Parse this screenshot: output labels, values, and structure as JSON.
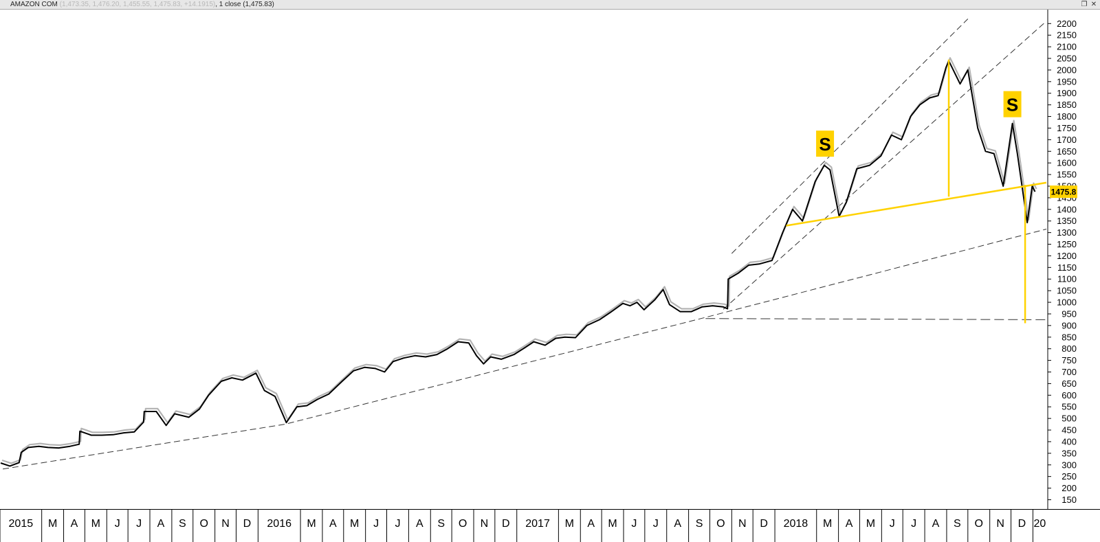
{
  "header": {
    "symbol": "AMAZON COM",
    "ohlc": "(1,473.35, 1,476.20, 1,455.55, 1,475.83, +14.1915)",
    "close_text": ", 1 close",
    "close_value": "(1,475.83)",
    "restore_icon": "window-restore-icon",
    "close_icon": "close-icon"
  },
  "chart_data": {
    "type": "line",
    "series": [
      {
        "name": "",
        "color": "#000000",
        "points": [
          [
            "2015-01-02",
            308
          ],
          [
            "2015-01-15",
            295
          ],
          [
            "2015-01-28",
            310
          ],
          [
            "2015-01-31",
            354
          ],
          [
            "2015-02-10",
            375
          ],
          [
            "2015-02-25",
            380
          ],
          [
            "2015-03-10",
            375
          ],
          [
            "2015-03-25",
            373
          ],
          [
            "2015-04-10",
            380
          ],
          [
            "2015-04-23",
            389
          ],
          [
            "2015-04-24",
            445
          ],
          [
            "2015-05-10",
            428
          ],
          [
            "2015-05-25",
            428
          ],
          [
            "2015-06-10",
            430
          ],
          [
            "2015-06-25",
            438
          ],
          [
            "2015-07-10",
            442
          ],
          [
            "2015-07-23",
            484
          ],
          [
            "2015-07-24",
            530
          ],
          [
            "2015-08-10",
            530
          ],
          [
            "2015-08-24",
            470
          ],
          [
            "2015-09-05",
            520
          ],
          [
            "2015-09-25",
            505
          ],
          [
            "2015-10-10",
            540
          ],
          [
            "2015-10-23",
            600
          ],
          [
            "2015-11-10",
            660
          ],
          [
            "2015-11-25",
            675
          ],
          [
            "2015-12-10",
            665
          ],
          [
            "2015-12-29",
            695
          ],
          [
            "2016-01-10",
            620
          ],
          [
            "2016-01-25",
            595
          ],
          [
            "2016-02-10",
            482
          ],
          [
            "2016-02-25",
            550
          ],
          [
            "2016-03-10",
            555
          ],
          [
            "2016-03-25",
            582
          ],
          [
            "2016-04-10",
            605
          ],
          [
            "2016-04-29",
            660
          ],
          [
            "2016-05-15",
            705
          ],
          [
            "2016-05-31",
            720
          ],
          [
            "2016-06-15",
            715
          ],
          [
            "2016-06-28",
            700
          ],
          [
            "2016-07-10",
            745
          ],
          [
            "2016-07-25",
            760
          ],
          [
            "2016-08-10",
            770
          ],
          [
            "2016-08-25",
            765
          ],
          [
            "2016-09-10",
            775
          ],
          [
            "2016-09-25",
            800
          ],
          [
            "2016-10-10",
            830
          ],
          [
            "2016-10-25",
            825
          ],
          [
            "2016-11-05",
            770
          ],
          [
            "2016-11-15",
            735
          ],
          [
            "2016-11-25",
            765
          ],
          [
            "2016-12-10",
            755
          ],
          [
            "2016-12-28",
            775
          ],
          [
            "2017-01-10",
            800
          ],
          [
            "2017-01-25",
            830
          ],
          [
            "2017-02-10",
            815
          ],
          [
            "2017-02-25",
            845
          ],
          [
            "2017-03-10",
            850
          ],
          [
            "2017-03-25",
            848
          ],
          [
            "2017-04-10",
            900
          ],
          [
            "2017-04-28",
            925
          ],
          [
            "2017-05-15",
            960
          ],
          [
            "2017-05-31",
            995
          ],
          [
            "2017-06-10",
            985
          ],
          [
            "2017-06-20",
            1000
          ],
          [
            "2017-06-30",
            968
          ],
          [
            "2017-07-15",
            1010
          ],
          [
            "2017-07-27",
            1055
          ],
          [
            "2017-08-05",
            990
          ],
          [
            "2017-08-20",
            960
          ],
          [
            "2017-09-05",
            960
          ],
          [
            "2017-09-20",
            980
          ],
          [
            "2017-10-05",
            985
          ],
          [
            "2017-10-20",
            980
          ],
          [
            "2017-10-26",
            972
          ],
          [
            "2017-10-27",
            1100
          ],
          [
            "2017-11-10",
            1125
          ],
          [
            "2017-11-25",
            1160
          ],
          [
            "2017-12-10",
            1165
          ],
          [
            "2017-12-28",
            1180
          ],
          [
            "2018-01-12",
            1300
          ],
          [
            "2018-01-26",
            1400
          ],
          [
            "2018-02-09",
            1350
          ],
          [
            "2018-02-27",
            1520
          ],
          [
            "2018-03-12",
            1590
          ],
          [
            "2018-03-20",
            1570
          ],
          [
            "2018-04-02",
            1370
          ],
          [
            "2018-04-12",
            1430
          ],
          [
            "2018-04-27",
            1575
          ],
          [
            "2018-05-15",
            1590
          ],
          [
            "2018-05-31",
            1630
          ],
          [
            "2018-06-15",
            1720
          ],
          [
            "2018-06-29",
            1700
          ],
          [
            "2018-07-12",
            1800
          ],
          [
            "2018-07-25",
            1850
          ],
          [
            "2018-08-08",
            1880
          ],
          [
            "2018-08-20",
            1890
          ],
          [
            "2018-08-31",
            2010
          ],
          [
            "2018-09-04",
            2040
          ],
          [
            "2018-09-20",
            1940
          ],
          [
            "2018-10-01",
            2000
          ],
          [
            "2018-10-15",
            1750
          ],
          [
            "2018-10-26",
            1650
          ],
          [
            "2018-11-07",
            1640
          ],
          [
            "2018-11-20",
            1500
          ],
          [
            "2018-12-03",
            1770
          ],
          [
            "2018-12-10",
            1640
          ],
          [
            "2018-12-24",
            1343
          ],
          [
            "2018-12-31",
            1501
          ],
          [
            "2019-01-04",
            1476
          ]
        ]
      }
    ],
    "annotations": {
      "s_labels": [
        {
          "date": "2018-03-13",
          "value": 1680,
          "text": "S"
        },
        {
          "date": "2018-12-03",
          "value": 1850,
          "text": "S"
        }
      ],
      "neckline": [
        [
          "2018-01-17",
          1330
        ],
        [
          "2019-01-20",
          1515
        ]
      ],
      "projection_target": 925,
      "channel_upper": [
        [
          "2017-11-01",
          1210
        ],
        [
          "2018-10-01",
          2220
        ]
      ],
      "channel_lower": [
        [
          "2017-10-20",
          970
        ],
        [
          "2019-01-20",
          2210
        ]
      ],
      "long_trend": [
        [
          "2015-01-05",
          282
        ],
        [
          "2016-02-08",
          475
        ],
        [
          "2017-09-25",
          935
        ],
        [
          "2019-01-20",
          1315
        ]
      ],
      "horizontal_support": [
        [
          "2017-09-25",
          930
        ],
        [
          "2019-01-20",
          925
        ]
      ],
      "price_box": "1475.8"
    },
    "y_ticks": [
      150,
      200,
      250,
      300,
      350,
      400,
      450,
      500,
      550,
      600,
      650,
      700,
      750,
      800,
      850,
      900,
      950,
      1000,
      1050,
      1100,
      1150,
      1200,
      1250,
      1300,
      1350,
      1400,
      1450,
      1500,
      1550,
      1600,
      1650,
      1700,
      1750,
      1800,
      1850,
      1900,
      1950,
      2000,
      2050,
      2100,
      2150,
      2200
    ],
    "ylim": [
      110,
      2260
    ],
    "x_ticks": [
      {
        "label": "2015",
        "date": "2015-01-01",
        "year": true
      },
      {
        "label": "M",
        "date": "2015-03-01"
      },
      {
        "label": "A",
        "date": "2015-04-01"
      },
      {
        "label": "M",
        "date": "2015-05-01"
      },
      {
        "label": "J",
        "date": "2015-06-01"
      },
      {
        "label": "J",
        "date": "2015-07-01"
      },
      {
        "label": "A",
        "date": "2015-08-01"
      },
      {
        "label": "S",
        "date": "2015-09-01"
      },
      {
        "label": "O",
        "date": "2015-10-01"
      },
      {
        "label": "N",
        "date": "2015-11-01"
      },
      {
        "label": "D",
        "date": "2015-12-01"
      },
      {
        "label": "2016",
        "date": "2016-01-01",
        "year": true
      },
      {
        "label": "M",
        "date": "2016-03-01"
      },
      {
        "label": "A",
        "date": "2016-04-01"
      },
      {
        "label": "M",
        "date": "2016-05-01"
      },
      {
        "label": "J",
        "date": "2016-06-01"
      },
      {
        "label": "J",
        "date": "2016-07-01"
      },
      {
        "label": "A",
        "date": "2016-08-01"
      },
      {
        "label": "S",
        "date": "2016-09-01"
      },
      {
        "label": "O",
        "date": "2016-10-01"
      },
      {
        "label": "N",
        "date": "2016-11-01"
      },
      {
        "label": "D",
        "date": "2016-12-01"
      },
      {
        "label": "2017",
        "date": "2017-01-01",
        "year": true
      },
      {
        "label": "M",
        "date": "2017-03-01"
      },
      {
        "label": "A",
        "date": "2017-04-01"
      },
      {
        "label": "M",
        "date": "2017-05-01"
      },
      {
        "label": "J",
        "date": "2017-06-01"
      },
      {
        "label": "J",
        "date": "2017-07-01"
      },
      {
        "label": "A",
        "date": "2017-08-01"
      },
      {
        "label": "S",
        "date": "2017-09-01"
      },
      {
        "label": "O",
        "date": "2017-10-01"
      },
      {
        "label": "N",
        "date": "2017-11-01"
      },
      {
        "label": "D",
        "date": "2017-12-01"
      },
      {
        "label": "2018",
        "date": "2018-01-01",
        "year": true
      },
      {
        "label": "M",
        "date": "2018-03-01"
      },
      {
        "label": "A",
        "date": "2018-04-01"
      },
      {
        "label": "M",
        "date": "2018-05-01"
      },
      {
        "label": "J",
        "date": "2018-06-01"
      },
      {
        "label": "J",
        "date": "2018-07-01"
      },
      {
        "label": "A",
        "date": "2018-08-01"
      },
      {
        "label": "S",
        "date": "2018-09-01"
      },
      {
        "label": "O",
        "date": "2018-10-01"
      },
      {
        "label": "N",
        "date": "2018-11-01"
      },
      {
        "label": "D",
        "date": "2018-12-01"
      },
      {
        "label": "20",
        "date": "2019-01-01",
        "year": true
      }
    ],
    "xlim": [
      "2015-01-01",
      "2019-01-22"
    ],
    "grid": false,
    "legend": "none",
    "colors": {
      "price": "#000000",
      "shadow": "#b3b3b3",
      "annotation": "#ffd200",
      "trend": "#333333"
    }
  }
}
